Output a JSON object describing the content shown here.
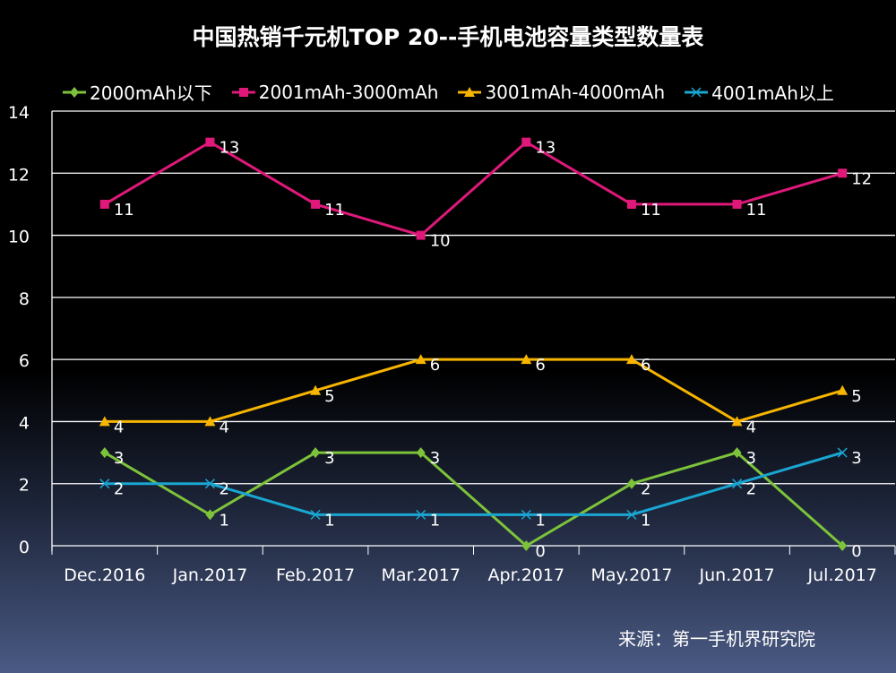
{
  "chart_data": {
    "type": "line",
    "title": "中国热销千元机TOP 20--手机电池容量类型数量表",
    "categories": [
      "Dec.2016",
      "Jan.2017",
      "Feb.2017",
      "Mar.2017",
      "Apr.2017",
      "May.2017",
      "Jun.2017",
      "Jul.2017"
    ],
    "ylim": [
      0,
      14
    ],
    "yticks": [
      0,
      2,
      4,
      6,
      8,
      10,
      12,
      14
    ],
    "grid": true,
    "legend": "top",
    "series": [
      {
        "name": "2000mAh以下",
        "color": "#7dc33a",
        "marker": "diamond",
        "values": [
          3,
          1,
          3,
          3,
          0,
          2,
          3,
          0
        ]
      },
      {
        "name": "2001mAh-3000mAh",
        "color": "#e0187a",
        "marker": "square",
        "values": [
          11,
          13,
          11,
          10,
          13,
          11,
          11,
          12
        ]
      },
      {
        "name": "3001mAh-4000mAh",
        "color": "#f7b500",
        "marker": "triangle",
        "values": [
          4,
          4,
          5,
          6,
          6,
          6,
          4,
          5
        ]
      },
      {
        "name": "4001mAh以上",
        "color": "#1aa6d2",
        "marker": "x",
        "values": [
          2,
          2,
          1,
          1,
          1,
          1,
          2,
          3
        ]
      }
    ],
    "source": "来源：第一手机界研究院"
  }
}
